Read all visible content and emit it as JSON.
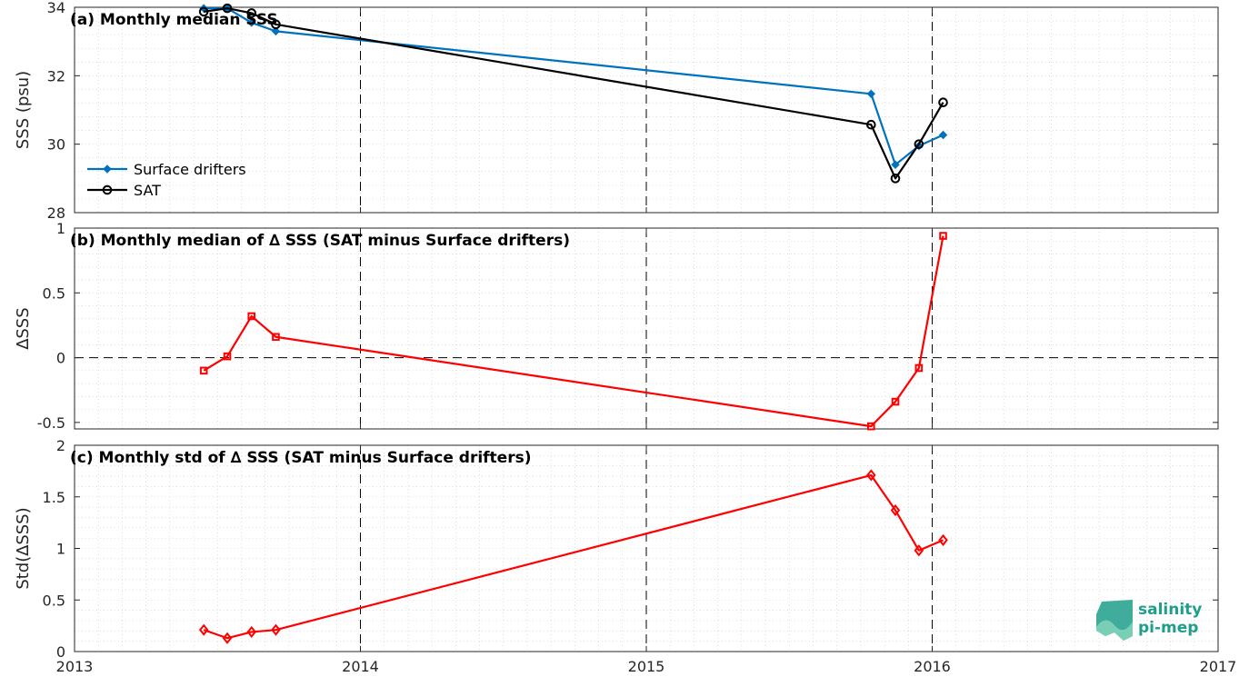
{
  "chart_data": [
    {
      "type": "line",
      "title": "(a) Monthly median SSS",
      "ylabel": "SSS (psu)",
      "xlim": [
        2013,
        2017
      ],
      "ylim": [
        28,
        34
      ],
      "yticks": [
        "28",
        "30",
        "32",
        "34"
      ],
      "xticks": [
        "2013",
        "2014",
        "2015",
        "2016",
        "2017"
      ],
      "grid": "dotted",
      "legend_position": "bottom-left",
      "series": [
        {
          "name": "Surface drifters",
          "color": "#0072bd",
          "marker": "filled-diamond",
          "x": [
            "2013-06-15",
            "2013-07-15",
            "2013-08-15",
            "2013-09-15",
            "2015-10-15",
            "2015-11-15",
            "2015-12-15",
            "2016-01-15"
          ],
          "y": [
            33.97,
            33.97,
            33.55,
            33.3,
            31.47,
            29.4,
            29.95,
            30.27
          ]
        },
        {
          "name": "SAT",
          "color": "#000000",
          "marker": "open-circle",
          "x": [
            "2013-06-15",
            "2013-07-15",
            "2013-08-15",
            "2013-09-15",
            "2015-10-15",
            "2015-11-15",
            "2015-12-15",
            "2016-01-15"
          ],
          "y": [
            33.87,
            33.97,
            33.83,
            33.5,
            30.57,
            29.0,
            30.0,
            31.22
          ]
        }
      ]
    },
    {
      "type": "line",
      "title": "(b) Monthly median of ∆ SSS (SAT minus Surface drifters)",
      "ylabel": "∆SSS",
      "xlim": [
        2013,
        2017
      ],
      "ylim": [
        -0.55,
        1
      ],
      "yticks": [
        "-0.5",
        "0",
        "0.5",
        "1"
      ],
      "xticks": [
        "2013",
        "2014",
        "2015",
        "2016",
        "2017"
      ],
      "grid": "dotted",
      "series": [
        {
          "color": "#ff0000",
          "marker": "open-square",
          "x": [
            "2013-06-15",
            "2013-07-15",
            "2013-08-15",
            "2013-09-15",
            "2015-10-15",
            "2015-11-15",
            "2015-12-15",
            "2016-01-15"
          ],
          "y": [
            -0.1,
            0.01,
            0.32,
            0.16,
            -0.53,
            -0.34,
            -0.08,
            0.94
          ]
        }
      ]
    },
    {
      "type": "line",
      "title": "(c) Monthly std of ∆ SSS (SAT minus Surface drifters)",
      "ylabel": "Std(∆SSS)",
      "xlim": [
        2013,
        2017
      ],
      "ylim": [
        0,
        2
      ],
      "yticks": [
        "0",
        "0.5",
        "1",
        "1.5",
        "2"
      ],
      "xticks": [
        "2013",
        "2014",
        "2015",
        "2016",
        "2017"
      ],
      "grid": "dotted",
      "series": [
        {
          "color": "#ff0000",
          "marker": "open-diamond",
          "x": [
            "2013-06-15",
            "2013-07-15",
            "2013-08-15",
            "2013-09-15",
            "2015-10-15",
            "2015-11-15",
            "2015-12-15",
            "2016-01-15"
          ],
          "y": [
            0.21,
            0.13,
            0.19,
            0.21,
            1.71,
            1.37,
            0.98,
            1.08
          ]
        }
      ]
    }
  ],
  "logo": {
    "line1": "salinity",
    "line2": "pi-mep"
  }
}
